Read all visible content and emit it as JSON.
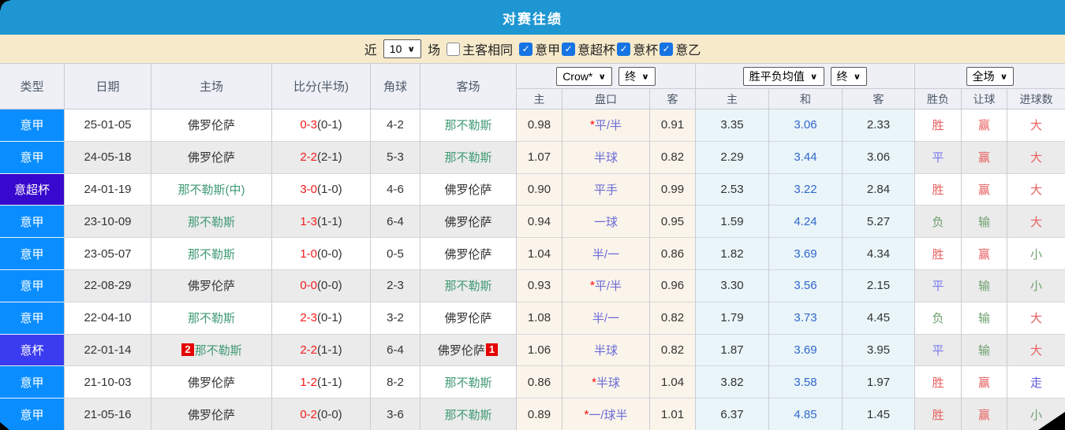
{
  "title": "对赛往绩",
  "filter": {
    "near_label": "近",
    "near_value": "10",
    "games_label": "场",
    "same_venue_label": "主客相同",
    "same_venue_checked": false,
    "leagues": [
      {
        "label": "意甲",
        "checked": true
      },
      {
        "label": "意超杯",
        "checked": true
      },
      {
        "label": "意杯",
        "checked": true
      },
      {
        "label": "意乙",
        "checked": true
      }
    ]
  },
  "table": {
    "left_headers": [
      "类型",
      "日期",
      "主场",
      "比分(半场)",
      "角球",
      "客场"
    ],
    "group_dropdowns": {
      "odds_source": "Crow*",
      "odds_time": "终",
      "avg_label": "胜平负均值",
      "avg_time": "终",
      "scope": "全场"
    },
    "sub_headers": [
      "主",
      "盘口",
      "客",
      "主",
      "和",
      "客",
      "胜负",
      "让球",
      "进球数"
    ],
    "type_colors": {
      "意甲": "#0a8eff",
      "意超杯": "#3708cd",
      "意杯": "#3b3bf0"
    },
    "highlight_team": "那不勒斯",
    "colors": {
      "accent_header": "#1e96d2",
      "filter_bg": "#f7eaca",
      "thead_bg": "#eef0f6",
      "row_alt_bg": "#ebebeb",
      "odds_bg": "#faf4ea",
      "avg_bg": "#e9f5f9",
      "score_red": "#f31b1b",
      "handicap_blue": "#6b6bd6",
      "avg_mid_blue": "#3366cc",
      "win_red": "#e95f5f",
      "draw_blue": "#7878ee",
      "lose_green": "#6f9f6f",
      "walk_blue": "#5b5bde",
      "team_green": "#3f9a72",
      "dark_text": "#333333"
    },
    "outcome_color_map": {
      "胜": "win_red",
      "赢": "win_red",
      "大": "win_red",
      "平": "draw_blue",
      "走": "walk_blue",
      "负": "lose_green",
      "输": "lose_green",
      "小": "lose_green"
    },
    "rows": [
      {
        "type": "意甲",
        "date": "25-01-05",
        "home": "佛罗伦萨",
        "score": "0-3",
        "half": "(0-1)",
        "corner": "4-2",
        "away": "那不勒斯",
        "odds": [
          "0.98",
          "*平/半",
          "0.91"
        ],
        "avg": [
          "3.35",
          "3.06",
          "2.33"
        ],
        "outcome": [
          "胜",
          "赢",
          "大"
        ]
      },
      {
        "type": "意甲",
        "date": "24-05-18",
        "home": "佛罗伦萨",
        "score": "2-2",
        "half": "(2-1)",
        "corner": "5-3",
        "away": "那不勒斯",
        "odds": [
          "1.07",
          "半球",
          "0.82"
        ],
        "avg": [
          "2.29",
          "3.44",
          "3.06"
        ],
        "outcome": [
          "平",
          "赢",
          "大"
        ]
      },
      {
        "type": "意超杯",
        "date": "24-01-19",
        "home": "那不勒斯(中)",
        "score": "3-0",
        "half": "(1-0)",
        "corner": "4-6",
        "away": "佛罗伦萨",
        "odds": [
          "0.90",
          "平手",
          "0.99"
        ],
        "avg": [
          "2.53",
          "3.22",
          "2.84"
        ],
        "outcome": [
          "胜",
          "赢",
          "大"
        ]
      },
      {
        "type": "意甲",
        "date": "23-10-09",
        "home": "那不勒斯",
        "score": "1-3",
        "half": "(1-1)",
        "corner": "6-4",
        "away": "佛罗伦萨",
        "odds": [
          "0.94",
          "一球",
          "0.95"
        ],
        "avg": [
          "1.59",
          "4.24",
          "5.27"
        ],
        "outcome": [
          "负",
          "输",
          "大"
        ]
      },
      {
        "type": "意甲",
        "date": "23-05-07",
        "home": "那不勒斯",
        "score": "1-0",
        "half": "(0-0)",
        "corner": "0-5",
        "away": "佛罗伦萨",
        "odds": [
          "1.04",
          "半/一",
          "0.86"
        ],
        "avg": [
          "1.82",
          "3.69",
          "4.34"
        ],
        "outcome": [
          "胜",
          "赢",
          "小"
        ]
      },
      {
        "type": "意甲",
        "date": "22-08-29",
        "home": "佛罗伦萨",
        "score": "0-0",
        "half": "(0-0)",
        "corner": "2-3",
        "away": "那不勒斯",
        "odds": [
          "0.93",
          "*平/半",
          "0.96"
        ],
        "avg": [
          "3.30",
          "3.56",
          "2.15"
        ],
        "outcome": [
          "平",
          "输",
          "小"
        ]
      },
      {
        "type": "意甲",
        "date": "22-04-10",
        "home": "那不勒斯",
        "score": "2-3",
        "half": "(0-1)",
        "corner": "3-2",
        "away": "佛罗伦萨",
        "odds": [
          "1.08",
          "半/一",
          "0.82"
        ],
        "avg": [
          "1.79",
          "3.73",
          "4.45"
        ],
        "outcome": [
          "负",
          "输",
          "大"
        ]
      },
      {
        "type": "意杯",
        "date": "22-01-14",
        "home": "那不勒斯",
        "home_badge": "2",
        "score": "2-2",
        "half": "(1-1)",
        "corner": "6-4",
        "away": "佛罗伦萨",
        "away_badge": "1",
        "odds": [
          "1.06",
          "半球",
          "0.82"
        ],
        "avg": [
          "1.87",
          "3.69",
          "3.95"
        ],
        "outcome": [
          "平",
          "输",
          "大"
        ]
      },
      {
        "type": "意甲",
        "date": "21-10-03",
        "home": "佛罗伦萨",
        "score": "1-2",
        "half": "(1-1)",
        "corner": "8-2",
        "away": "那不勒斯",
        "odds": [
          "0.86",
          "*半球",
          "1.04"
        ],
        "avg": [
          "3.82",
          "3.58",
          "1.97"
        ],
        "outcome": [
          "胜",
          "赢",
          "走"
        ]
      },
      {
        "type": "意甲",
        "date": "21-05-16",
        "home": "佛罗伦萨",
        "score": "0-2",
        "half": "(0-0)",
        "corner": "3-6",
        "away": "那不勒斯",
        "odds": [
          "0.89",
          "*一/球半",
          "1.01"
        ],
        "avg": [
          "6.37",
          "4.85",
          "1.45"
        ],
        "outcome": [
          "胜",
          "赢",
          "小"
        ]
      }
    ]
  }
}
